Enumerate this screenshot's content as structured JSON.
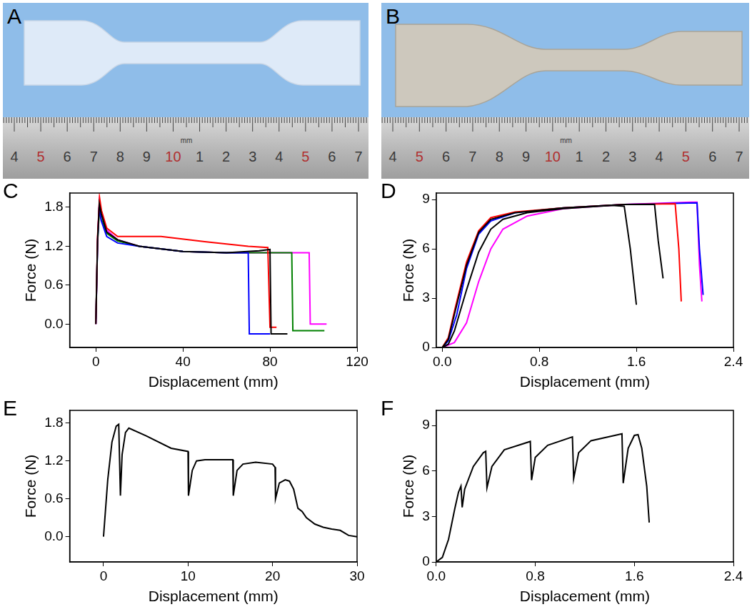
{
  "photos": [
    {
      "panel": "A",
      "ruler": {
        "unit": "mm",
        "labels": [
          {
            "text": "4",
            "color": "#3a3a3a"
          },
          {
            "text": "5",
            "color": "#b03030"
          },
          {
            "text": "6",
            "color": "#3a3a3a"
          },
          {
            "text": "7",
            "color": "#3a3a3a"
          },
          {
            "text": "8",
            "color": "#3a3a3a"
          },
          {
            "text": "9",
            "color": "#3a3a3a"
          },
          {
            "text": "10",
            "color": "#b03030"
          },
          {
            "text": "1",
            "color": "#3a3a3a"
          },
          {
            "text": "2",
            "color": "#3a3a3a"
          },
          {
            "text": "3",
            "color": "#3a3a3a"
          },
          {
            "text": "4",
            "color": "#3a3a3a"
          },
          {
            "text": "5",
            "color": "#b03030"
          },
          {
            "text": "6",
            "color": "#3a3a3a"
          },
          {
            "text": "7",
            "color": "#3a3a3a"
          }
        ]
      }
    },
    {
      "panel": "B",
      "ruler": {
        "unit": "mm",
        "labels": [
          {
            "text": "4",
            "color": "#3a3a3a"
          },
          {
            "text": "5",
            "color": "#b03030"
          },
          {
            "text": "6",
            "color": "#3a3a3a"
          },
          {
            "text": "7",
            "color": "#3a3a3a"
          },
          {
            "text": "8",
            "color": "#3a3a3a"
          },
          {
            "text": "9",
            "color": "#3a3a3a"
          },
          {
            "text": "10",
            "color": "#b03030"
          },
          {
            "text": "1",
            "color": "#3a3a3a"
          },
          {
            "text": "2",
            "color": "#3a3a3a"
          },
          {
            "text": "3",
            "color": "#3a3a3a"
          },
          {
            "text": "4",
            "color": "#3a3a3a"
          },
          {
            "text": "5",
            "color": "#b03030"
          },
          {
            "text": "6",
            "color": "#3a3a3a"
          },
          {
            "text": "7",
            "color": "#3a3a3a"
          }
        ]
      }
    }
  ],
  "chart_data": [
    {
      "panel": "C",
      "type": "line",
      "x_label": "Displacement (mm)",
      "y_label": "Force (N)",
      "grid": false,
      "xlim": [
        -12,
        120
      ],
      "xticks": [
        0,
        40,
        80,
        120
      ],
      "ylim": [
        -0.36,
        2.02
      ],
      "yticks": [
        {
          "value": 0,
          "label": "0.0"
        },
        0.6,
        1.2,
        1.8
      ],
      "series": [
        {
          "color": "#000000",
          "x": [
            0,
            0.8,
            1.6,
            2.5,
            5,
            10,
            20,
            40,
            60,
            75,
            80,
            80.5,
            88
          ],
          "values": [
            0,
            1.3,
            1.85,
            1.7,
            1.42,
            1.3,
            1.2,
            1.12,
            1.1,
            1.13,
            1.15,
            -0.15,
            -0.15
          ]
        },
        {
          "color": "#ff0000",
          "x": [
            0,
            0.8,
            1.7,
            2.6,
            5,
            10,
            30,
            50,
            70,
            79,
            80,
            83
          ],
          "values": [
            0,
            1.35,
            1.95,
            1.75,
            1.48,
            1.35,
            1.35,
            1.27,
            1.2,
            1.18,
            -0.05,
            -0.05
          ]
        },
        {
          "color": "#0000ff",
          "x": [
            0,
            0.8,
            1.5,
            2.4,
            5,
            10,
            20,
            40,
            60,
            70,
            70.5,
            80
          ],
          "values": [
            0,
            1.25,
            1.8,
            1.6,
            1.35,
            1.25,
            1.2,
            1.12,
            1.1,
            1.1,
            -0.15,
            -0.15
          ]
        },
        {
          "color": "#008000",
          "x": [
            0,
            0.8,
            1.6,
            2.5,
            5,
            10,
            20,
            40,
            60,
            80,
            90,
            90.5,
            105
          ],
          "values": [
            0.08,
            1.25,
            1.75,
            1.62,
            1.4,
            1.28,
            1.2,
            1.12,
            1.1,
            1.1,
            1.1,
            -0.1,
            -0.1
          ]
        },
        {
          "color": "#ff00ff",
          "x": [
            0,
            0.8,
            1.6,
            2.5,
            5,
            10,
            20,
            40,
            60,
            80,
            98,
            98.5,
            106
          ],
          "values": [
            0,
            1.3,
            1.88,
            1.7,
            1.45,
            1.3,
            1.2,
            1.12,
            1.1,
            1.1,
            1.1,
            0,
            0
          ]
        }
      ]
    },
    {
      "panel": "D",
      "type": "line",
      "x_label": "Displacement (mm)",
      "y_label": "Force (N)",
      "grid": false,
      "xlim": [
        -0.05,
        2.4
      ],
      "xticks": [
        {
          "value": 0,
          "label": "0.0"
        },
        0.8,
        1.6,
        2.4
      ],
      "ylim": [
        0,
        9.4
      ],
      "yticks": [
        0,
        3,
        6,
        9
      ],
      "series": [
        {
          "color": "#000000",
          "x": [
            0,
            0.05,
            0.1,
            0.2,
            0.3,
            0.4,
            0.5,
            0.7,
            1.0,
            1.4,
            1.5,
            1.55,
            1.6
          ],
          "values": [
            0,
            0.2,
            1,
            3.5,
            5.8,
            7.2,
            7.8,
            8.2,
            8.45,
            8.65,
            8.6,
            6,
            2.6
          ]
        },
        {
          "color": "#000000",
          "x": [
            0,
            0.05,
            0.1,
            0.2,
            0.3,
            0.4,
            0.6,
            1.0,
            1.5,
            1.75,
            1.78,
            1.82
          ],
          "values": [
            0,
            0.5,
            2,
            5,
            7,
            7.8,
            8.2,
            8.5,
            8.7,
            8.7,
            6.5,
            4.2
          ]
        },
        {
          "color": "#ff0000",
          "x": [
            0,
            0.05,
            0.1,
            0.2,
            0.3,
            0.4,
            0.6,
            1.0,
            1.5,
            1.92,
            1.95,
            1.97
          ],
          "values": [
            0,
            0.6,
            2.2,
            5.2,
            7.1,
            7.9,
            8.25,
            8.5,
            8.7,
            8.75,
            6,
            2.8
          ]
        },
        {
          "color": "#0000ff",
          "x": [
            0,
            0.05,
            0.12,
            0.2,
            0.3,
            0.4,
            0.6,
            1.0,
            1.5,
            2.1,
            2.12,
            2.15
          ],
          "values": [
            0,
            0.4,
            2,
            4.8,
            6.9,
            7.7,
            8.2,
            8.5,
            8.7,
            8.8,
            6,
            3.2
          ]
        },
        {
          "color": "#ff00ff",
          "x": [
            0,
            0.1,
            0.2,
            0.3,
            0.4,
            0.5,
            0.7,
            1.0,
            1.5,
            2.05,
            2.1,
            2.12,
            2.14
          ],
          "values": [
            0,
            0.3,
            1.5,
            4,
            6,
            7.2,
            8,
            8.45,
            8.7,
            8.85,
            8.85,
            5,
            2.8
          ]
        }
      ]
    },
    {
      "panel": "E",
      "type": "line",
      "x_label": "Displacement (mm)",
      "y_label": "Force (N)",
      "grid": false,
      "xlim": [
        -4,
        30
      ],
      "xticks": [
        0,
        10,
        20,
        30
      ],
      "ylim": [
        -0.4,
        2.0
      ],
      "yticks": [
        {
          "value": 0,
          "label": "0.0"
        },
        0.6,
        1.2,
        1.8
      ],
      "series": [
        {
          "color": "#000000",
          "x": [
            0,
            0.5,
            1,
            1.5,
            1.8,
            2.0,
            2.2,
            2.6,
            3,
            5,
            8,
            10,
            10.05,
            10.5,
            11,
            12,
            15,
            15.3,
            15.35,
            15.8,
            16.5,
            18,
            20,
            20.3,
            20.35,
            20.8,
            21.5,
            22,
            22.5,
            23,
            23.5,
            24,
            25,
            26,
            27,
            28,
            29,
            30
          ],
          "values": [
            0,
            0.9,
            1.5,
            1.75,
            1.78,
            0.65,
            1.3,
            1.65,
            1.72,
            1.6,
            1.4,
            1.35,
            0.65,
            1.05,
            1.2,
            1.22,
            1.22,
            1.22,
            0.65,
            1.05,
            1.15,
            1.18,
            1.15,
            1.1,
            0.6,
            0.85,
            0.9,
            0.88,
            0.75,
            0.45,
            0.4,
            0.3,
            0.2,
            0.15,
            0.12,
            0.1,
            0.02,
            0
          ]
        }
      ]
    },
    {
      "panel": "F",
      "type": "line",
      "x_label": "Displacement (mm)",
      "y_label": "Force (N)",
      "grid": false,
      "xlim": [
        0,
        2.4
      ],
      "xticks": [
        {
          "value": 0,
          "label": "0.0"
        },
        0.8,
        1.6,
        2.4
      ],
      "ylim": [
        0,
        10
      ],
      "yticks": [
        0,
        3,
        6,
        9
      ],
      "series": [
        {
          "color": "#000000",
          "x": [
            0,
            0.05,
            0.1,
            0.15,
            0.18,
            0.2,
            0.21,
            0.23,
            0.3,
            0.38,
            0.4,
            0.41,
            0.45,
            0.55,
            0.76,
            0.77,
            0.8,
            0.9,
            1.1,
            1.11,
            1.15,
            1.25,
            1.5,
            1.51,
            1.55,
            1.6,
            1.63,
            1.66,
            1.7,
            1.72
          ],
          "values": [
            0,
            0.3,
            1.5,
            3.5,
            4.6,
            5,
            3.6,
            4.8,
            6.3,
            7.2,
            7.3,
            4.9,
            6.3,
            7.4,
            7.95,
            5.4,
            6.9,
            7.7,
            8.25,
            5.5,
            7.2,
            8.0,
            8.45,
            5.2,
            7.5,
            8.35,
            8.4,
            7.5,
            5,
            2.6
          ]
        }
      ]
    }
  ]
}
